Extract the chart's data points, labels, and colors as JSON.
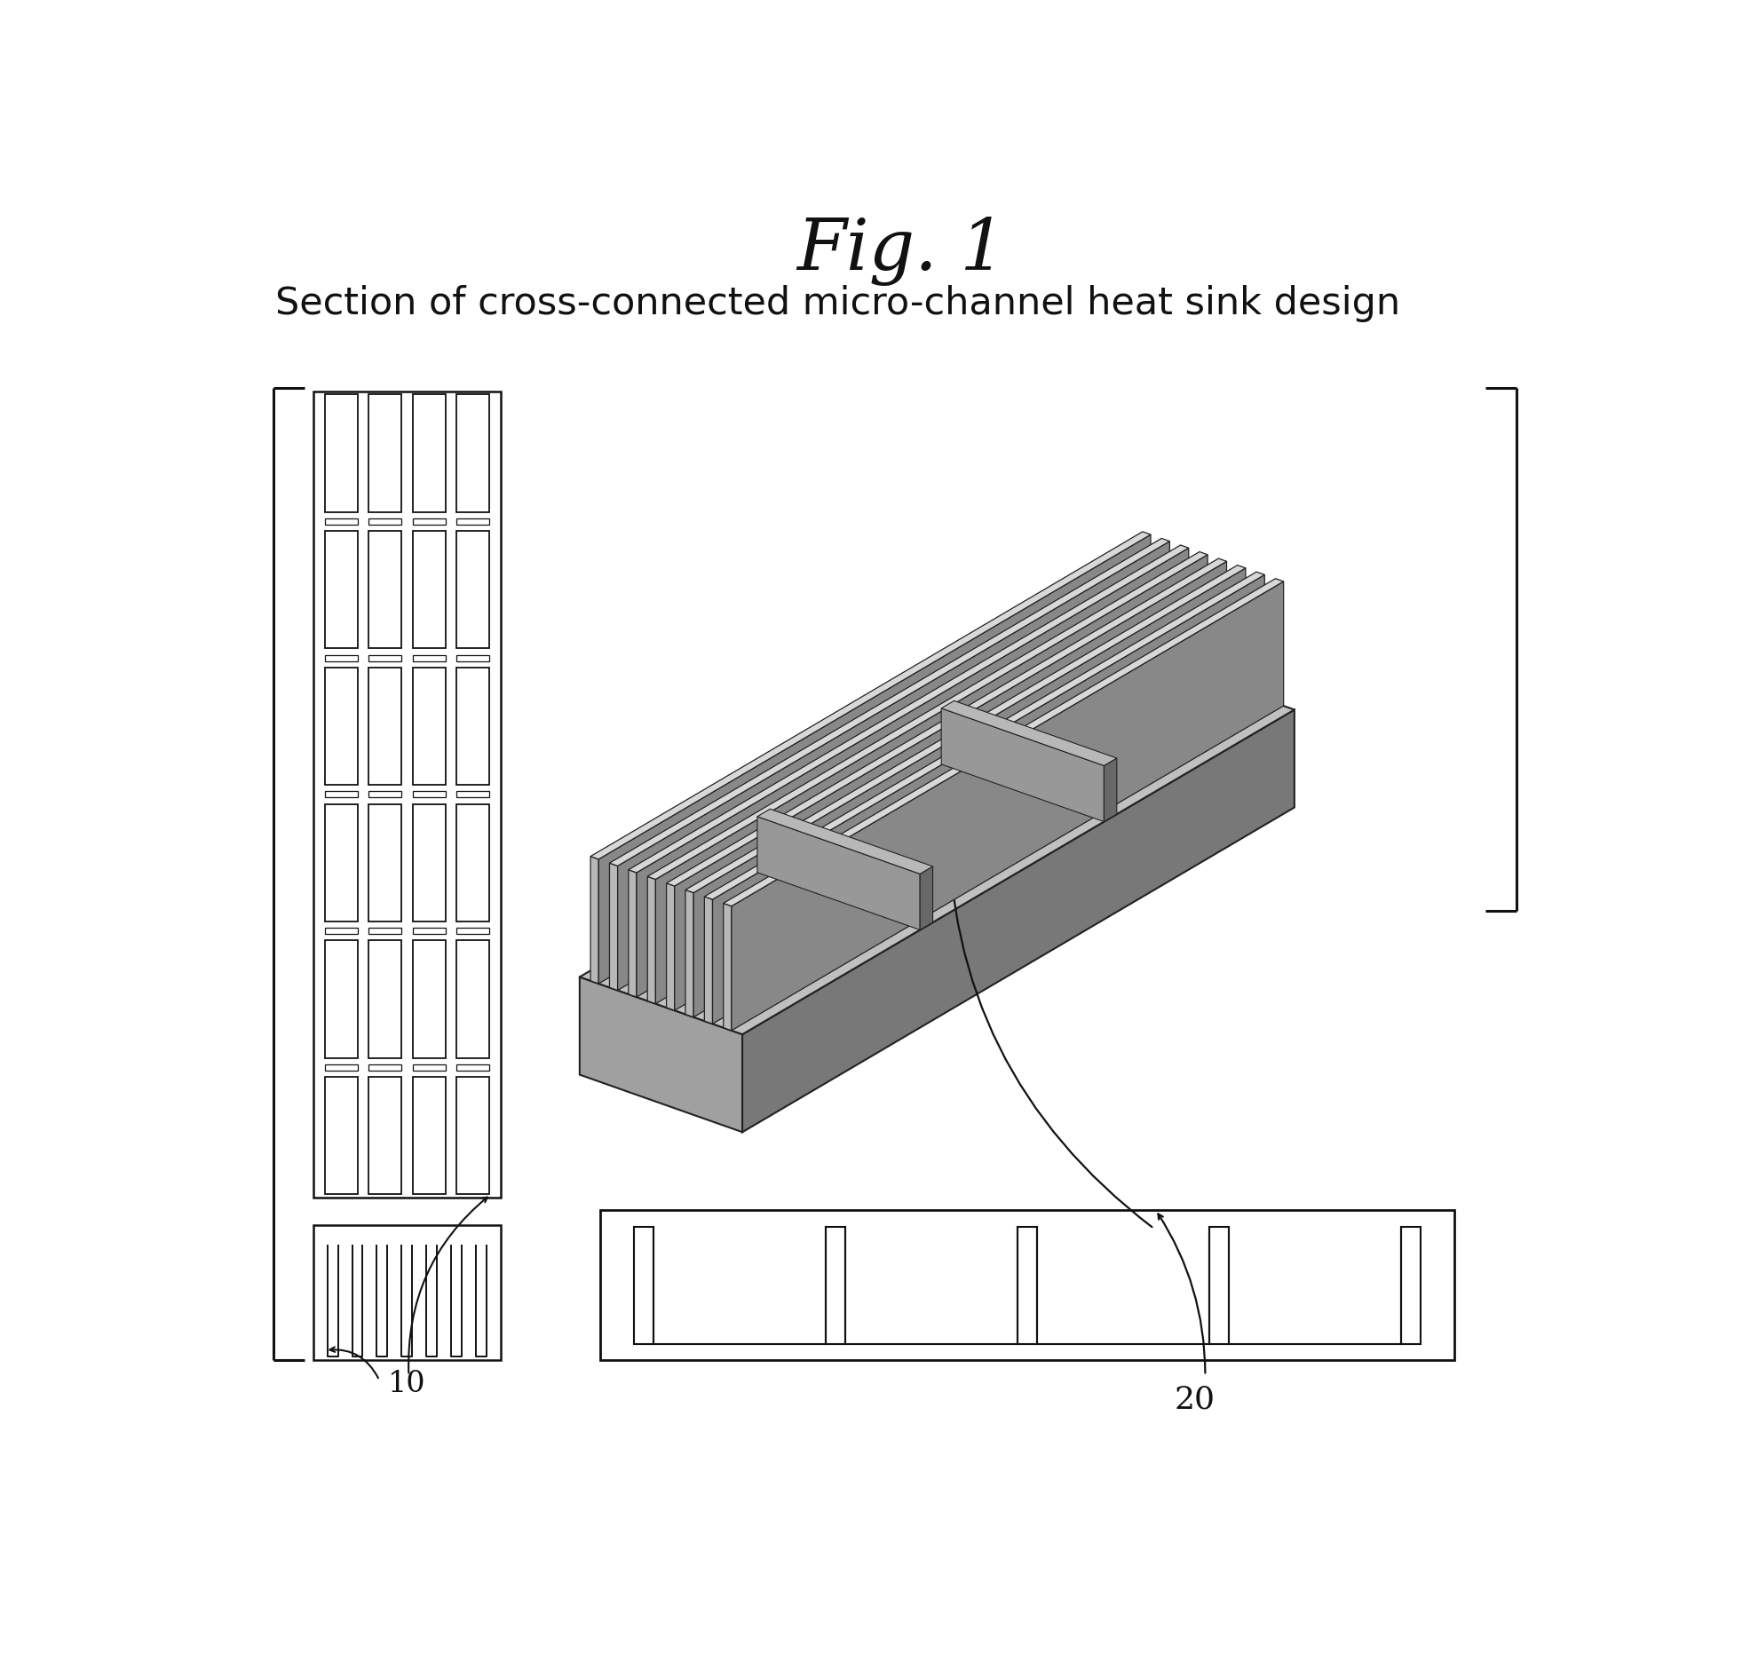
{
  "title": "Fig. 1",
  "subtitle": "Section of cross-connected micro-channel heat sink design",
  "label_10": "10",
  "label_20": "20",
  "bg_color": "#ffffff",
  "lc": "#111111",
  "ec3d": "#222222",
  "base_front": "#a0a0a0",
  "base_right": "#787878",
  "base_top": "#c0c0c0",
  "fin_front": "#b8b8b8",
  "fin_right": "#888888",
  "fin_top": "#d8d8d8",
  "cross_front": "#989898",
  "cross_right": "#686868",
  "cross_top": "#b8b8b8"
}
